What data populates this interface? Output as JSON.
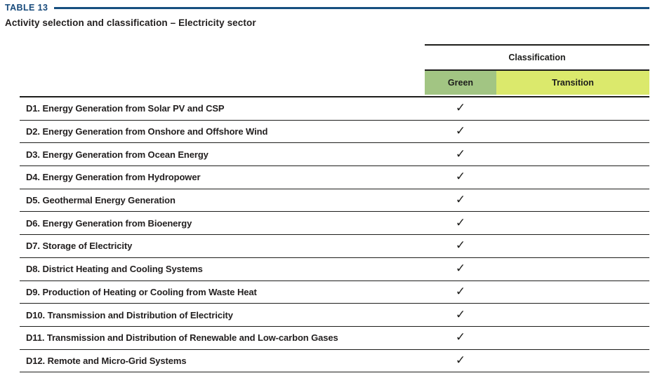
{
  "table_label": "TABLE 13",
  "title": "Activity selection and classification – Electricity sector",
  "classification": {
    "header": "Classification",
    "columns": [
      {
        "label": "Green",
        "color": "#a2c583"
      },
      {
        "label": "Transition",
        "color": "#dbe96c"
      }
    ]
  },
  "check_glyph": "✓",
  "rows": [
    {
      "activity": "D1. Energy Generation from Solar PV and CSP",
      "green": true,
      "transition": false
    },
    {
      "activity": "D2. Energy Generation from Onshore and Offshore Wind",
      "green": true,
      "transition": false
    },
    {
      "activity": "D3. Energy Generation from Ocean Energy",
      "green": true,
      "transition": false
    },
    {
      "activity": "D4. Energy Generation from Hydropower",
      "green": true,
      "transition": false
    },
    {
      "activity": "D5. Geothermal Energy Generation",
      "green": true,
      "transition": false
    },
    {
      "activity": "D6. Energy Generation from Bioenergy",
      "green": true,
      "transition": false
    },
    {
      "activity": "D7. Storage of Electricity",
      "green": true,
      "transition": false
    },
    {
      "activity": "D8. District Heating and Cooling Systems",
      "green": true,
      "transition": false
    },
    {
      "activity": "D9. Production of Heating or Cooling from Waste Heat",
      "green": true,
      "transition": false
    },
    {
      "activity": "D10. Transmission and Distribution of Electricity",
      "green": true,
      "transition": false
    },
    {
      "activity": "D11. Transmission and Distribution of Renewable and Low-carbon Gases",
      "green": true,
      "transition": false
    },
    {
      "activity": "D12. Remote and Micro-Grid Systems",
      "green": true,
      "transition": false
    }
  ],
  "colors": {
    "accent_blue": "#175080",
    "title_text_blue": "#174a7b",
    "line_black": "#1d1d1b",
    "body_text": "#221f1f",
    "green_cell": "#a2c583",
    "transition_cell": "#dbe96c"
  }
}
